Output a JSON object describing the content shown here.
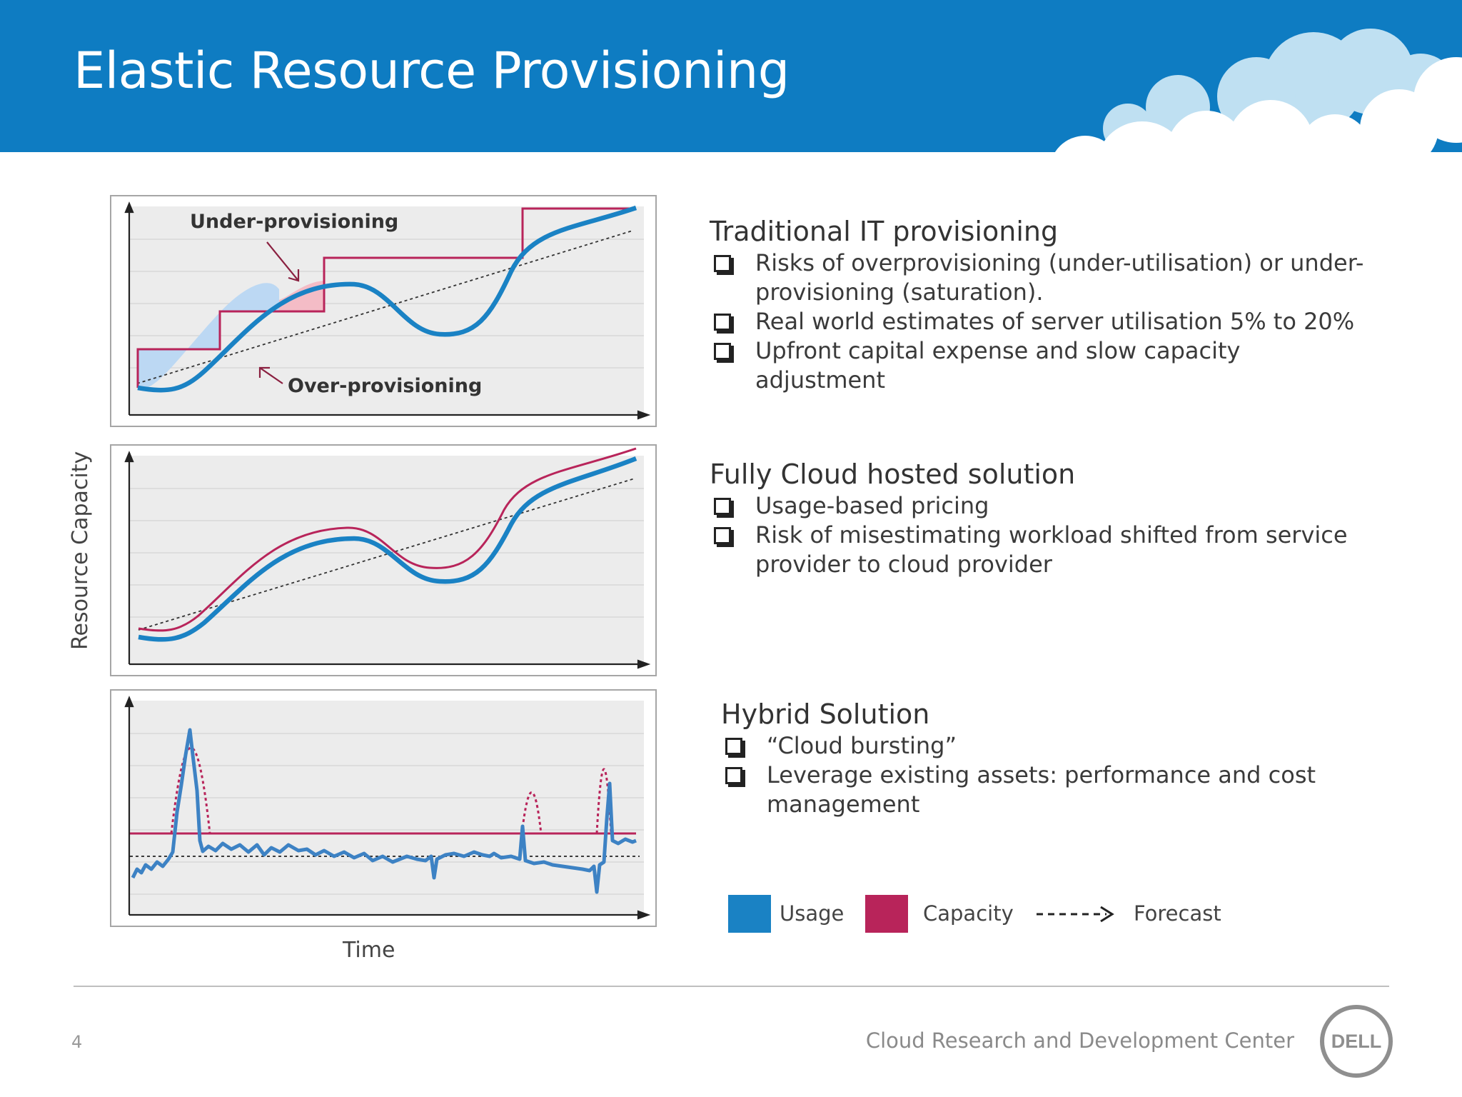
{
  "header": {
    "title": "Elastic Resource Provisioning"
  },
  "axes": {
    "ylabel": "Resource Capacity",
    "xlabel": "Time"
  },
  "diagram_labels": {
    "under": "Under-provisioning",
    "over": "Over-provisioning"
  },
  "sections": [
    {
      "heading": "Traditional IT provisioning",
      "bullets": [
        "Risks of overprovisioning (under-utilisation) or under-provisioning (saturation).",
        "Real world estimates of server utilisation 5% to 20%",
        "Upfront capital expense and slow capacity adjustment"
      ]
    },
    {
      "heading": "Fully Cloud hosted solution",
      "bullets": [
        "Usage-based pricing",
        "Risk of misestimating workload shifted from service provider to cloud provider"
      ]
    },
    {
      "heading": "Hybrid Solution",
      "bullets": [
        "“Cloud bursting”",
        "Leverage existing assets: performance and cost management"
      ]
    }
  ],
  "legend": [
    {
      "label": "Usage",
      "color": "#1a82c4",
      "kind": "swatch"
    },
    {
      "label": "Capacity",
      "color": "#b8245a",
      "kind": "swatch"
    },
    {
      "label": "Forecast",
      "color": "#222222",
      "kind": "dashed-arrow"
    }
  ],
  "footer": {
    "page_number": "4",
    "org": "Cloud Research and Development Center",
    "logo_text": "DELL"
  }
}
